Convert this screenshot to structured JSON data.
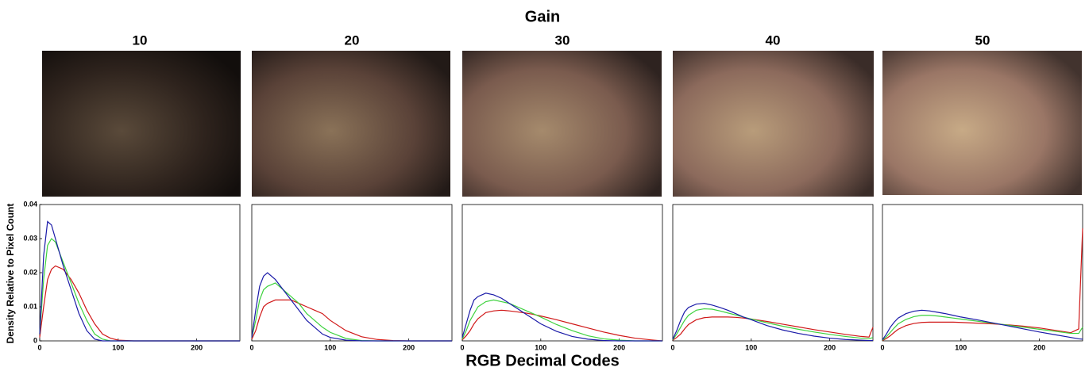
{
  "title": "Gain",
  "x_label": "RGB Decimal Codes",
  "y_label": "Density Relative to Pixel Count",
  "chart_data": [
    {
      "type": "line",
      "title": "10",
      "xlim": [
        0,
        255
      ],
      "ylim": [
        0,
        0.04
      ],
      "xticks": [
        0,
        100,
        200
      ],
      "yticks": [
        0,
        0.01,
        0.02,
        0.03,
        0.04
      ],
      "x": [
        0,
        5,
        10,
        15,
        20,
        30,
        40,
        50,
        60,
        70,
        80,
        90,
        100,
        120,
        140,
        160,
        180,
        200,
        220,
        240,
        250,
        255
      ],
      "series": [
        {
          "color": "#d01818",
          "values": [
            0.001,
            0.01,
            0.018,
            0.021,
            0.022,
            0.021,
            0.018,
            0.014,
            0.009,
            0.005,
            0.002,
            0.0008,
            0.0002,
            0,
            0,
            0,
            0,
            0,
            0,
            0,
            0,
            0
          ]
        },
        {
          "color": "#3ed23e",
          "values": [
            0.002,
            0.018,
            0.028,
            0.03,
            0.029,
            0.023,
            0.017,
            0.011,
            0.006,
            0.002,
            0.0005,
            0,
            0,
            0,
            0,
            0,
            0,
            0,
            0,
            0,
            0,
            0
          ]
        },
        {
          "color": "#1a1aa8",
          "values": [
            0.002,
            0.025,
            0.035,
            0.034,
            0.03,
            0.022,
            0.015,
            0.008,
            0.003,
            0.0005,
            0,
            0,
            0,
            0,
            0,
            0,
            0,
            0,
            0,
            0,
            0,
            0
          ]
        }
      ]
    },
    {
      "type": "line",
      "title": "20",
      "xlim": [
        0,
        255
      ],
      "ylim": [
        0,
        0.04
      ],
      "xticks": [
        0,
        100,
        200
      ],
      "x": [
        0,
        5,
        10,
        15,
        20,
        30,
        40,
        50,
        60,
        70,
        80,
        90,
        100,
        120,
        140,
        160,
        180,
        200,
        220,
        240,
        250,
        255
      ],
      "series": [
        {
          "color": "#d01818",
          "values": [
            0.0005,
            0.003,
            0.007,
            0.01,
            0.011,
            0.012,
            0.012,
            0.012,
            0.011,
            0.01,
            0.009,
            0.008,
            0.006,
            0.003,
            0.0012,
            0.0004,
            0.0001,
            0,
            0,
            0,
            0,
            0
          ]
        },
        {
          "color": "#3ed23e",
          "values": [
            0.001,
            0.006,
            0.012,
            0.015,
            0.016,
            0.017,
            0.015,
            0.013,
            0.011,
            0.008,
            0.006,
            0.004,
            0.0025,
            0.0007,
            0.0001,
            0,
            0,
            0,
            0,
            0,
            0,
            0
          ]
        },
        {
          "color": "#1a1aa8",
          "values": [
            0.001,
            0.009,
            0.016,
            0.019,
            0.02,
            0.018,
            0.015,
            0.012,
            0.009,
            0.006,
            0.004,
            0.002,
            0.001,
            0.0002,
            0,
            0,
            0,
            0,
            0,
            0,
            0,
            0
          ]
        }
      ]
    },
    {
      "type": "line",
      "title": "30",
      "xlim": [
        0,
        255
      ],
      "ylim": [
        0,
        0.04
      ],
      "xticks": [
        0,
        100,
        200
      ],
      "x": [
        0,
        5,
        10,
        15,
        20,
        30,
        40,
        50,
        60,
        70,
        80,
        90,
        100,
        120,
        140,
        160,
        180,
        200,
        220,
        240,
        250,
        255
      ],
      "series": [
        {
          "color": "#d01818",
          "values": [
            0.0003,
            0.0015,
            0.003,
            0.005,
            0.0065,
            0.0083,
            0.0088,
            0.009,
            0.0088,
            0.0085,
            0.0082,
            0.0078,
            0.0073,
            0.0062,
            0.005,
            0.0038,
            0.0026,
            0.0016,
            0.0008,
            0.0003,
            0.0001,
            0
          ]
        },
        {
          "color": "#3ed23e",
          "values": [
            0.0005,
            0.003,
            0.006,
            0.008,
            0.01,
            0.0115,
            0.012,
            0.0115,
            0.011,
            0.01,
            0.009,
            0.008,
            0.007,
            0.0048,
            0.003,
            0.0015,
            0.0006,
            0.0002,
            0,
            0,
            0,
            0
          ]
        },
        {
          "color": "#1a1aa8",
          "values": [
            0.001,
            0.005,
            0.009,
            0.012,
            0.013,
            0.014,
            0.0135,
            0.0125,
            0.011,
            0.0095,
            0.008,
            0.0065,
            0.005,
            0.0028,
            0.0013,
            0.0005,
            0.0001,
            0,
            0,
            0,
            0,
            0
          ]
        }
      ]
    },
    {
      "type": "line",
      "title": "40",
      "xlim": [
        0,
        255
      ],
      "ylim": [
        0,
        0.04
      ],
      "xticks": [
        0,
        100,
        200
      ],
      "x": [
        0,
        5,
        10,
        15,
        20,
        30,
        40,
        50,
        60,
        70,
        80,
        90,
        100,
        120,
        140,
        160,
        180,
        200,
        220,
        240,
        250,
        255
      ],
      "series": [
        {
          "color": "#d01818",
          "values": [
            0.0002,
            0.001,
            0.002,
            0.0035,
            0.0048,
            0.0062,
            0.0068,
            0.007,
            0.007,
            0.007,
            0.0069,
            0.0067,
            0.0064,
            0.0057,
            0.0049,
            0.0041,
            0.0033,
            0.0026,
            0.0019,
            0.0013,
            0.0011,
            0.004
          ]
        },
        {
          "color": "#3ed23e",
          "values": [
            0.0003,
            0.002,
            0.004,
            0.006,
            0.0075,
            0.009,
            0.0094,
            0.0093,
            0.0088,
            0.0082,
            0.0076,
            0.007,
            0.0064,
            0.0053,
            0.0043,
            0.0034,
            0.0026,
            0.0019,
            0.0013,
            0.0008,
            0.0006,
            0.001
          ]
        },
        {
          "color": "#1a1aa8",
          "values": [
            0.0005,
            0.003,
            0.006,
            0.0085,
            0.0098,
            0.0108,
            0.011,
            0.0105,
            0.0098,
            0.009,
            0.008,
            0.007,
            0.0062,
            0.0045,
            0.0032,
            0.0022,
            0.0014,
            0.0008,
            0.0004,
            0.0002,
            0.0001,
            0.0001
          ]
        }
      ]
    },
    {
      "type": "line",
      "title": "50",
      "xlim": [
        0,
        255
      ],
      "ylim": [
        0,
        0.04
      ],
      "xticks": [
        0,
        100,
        200
      ],
      "x": [
        0,
        5,
        10,
        15,
        20,
        30,
        40,
        50,
        60,
        70,
        80,
        90,
        100,
        120,
        140,
        160,
        180,
        200,
        220,
        240,
        250,
        255
      ],
      "series": [
        {
          "color": "#d01818",
          "values": [
            0.0001,
            0.0007,
            0.0015,
            0.0025,
            0.0034,
            0.0045,
            0.0051,
            0.0054,
            0.0055,
            0.0055,
            0.0055,
            0.0055,
            0.0054,
            0.0052,
            0.005,
            0.0047,
            0.0043,
            0.0038,
            0.0031,
            0.0024,
            0.0035,
            0.033
          ]
        },
        {
          "color": "#3ed23e",
          "values": [
            0.0002,
            0.0012,
            0.0025,
            0.0038,
            0.005,
            0.0063,
            0.0071,
            0.0075,
            0.0075,
            0.0073,
            0.007,
            0.0067,
            0.0064,
            0.0058,
            0.0052,
            0.0046,
            0.004,
            0.0034,
            0.0028,
            0.0022,
            0.0022,
            0.004
          ]
        },
        {
          "color": "#1a1aa8",
          "values": [
            0.0003,
            0.002,
            0.004,
            0.0055,
            0.0067,
            0.008,
            0.0087,
            0.009,
            0.0088,
            0.0084,
            0.008,
            0.0075,
            0.007,
            0.0062,
            0.0053,
            0.0044,
            0.0035,
            0.0026,
            0.0018,
            0.001,
            0.0006,
            0.0005
          ]
        }
      ]
    }
  ]
}
